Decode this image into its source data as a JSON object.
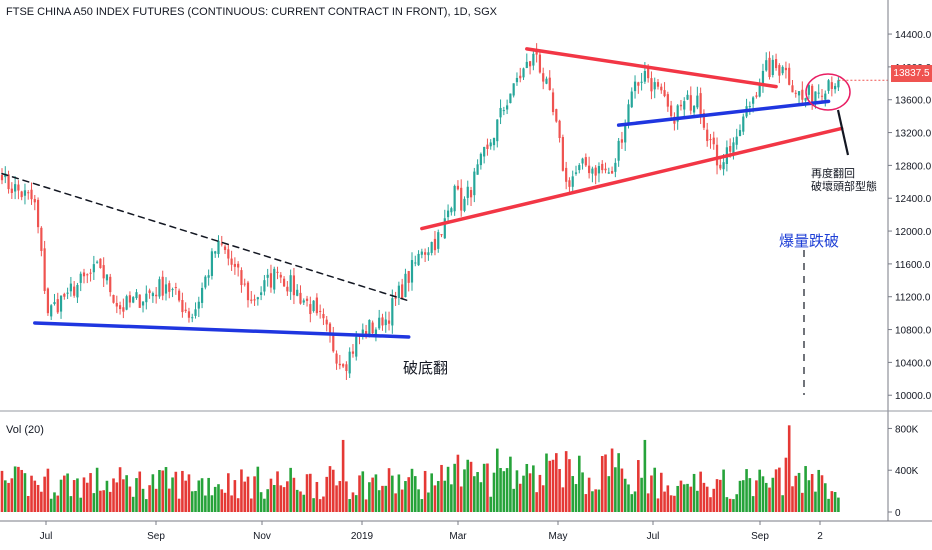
{
  "title": "FTSE CHINA A50 INDEX FUTURES (CONTINUOUS: CURRENT CONTRACT IN FRONT), 1D, SGX",
  "volume_label": "Vol (20)",
  "last_price": "13837.5",
  "annotations": {
    "bottom_reversal": "破底翻",
    "volume_breakdown": "爆量跌破",
    "head_note_line1": "再度翻回",
    "head_note_line2": "破壞頭部型態"
  },
  "colors": {
    "up": "#26a69a",
    "down": "#ef5350",
    "vol_up": "#26a33a",
    "vol_down": "#e53935",
    "trendline_red": "#f23645",
    "trendline_blue": "#1f36e0",
    "circle": "#e91e63"
  },
  "chart_data": {
    "type": "candlestick",
    "price_axis": {
      "ticks": [
        14400.0,
        14000.0,
        13600.0,
        13200.0,
        12800.0,
        12400.0,
        12000.0,
        11600.0,
        11200.0,
        10800.0,
        10400.0,
        10000.0
      ],
      "ylim": [
        9820,
        14620
      ]
    },
    "volume_axis": {
      "ticks": [
        "800K",
        "400K",
        "0"
      ],
      "ylim": [
        0,
        900000
      ]
    },
    "x_axis": {
      "ticks": [
        "Jul",
        "Sep",
        "Nov",
        "2019",
        "Mar",
        "May",
        "Jul",
        "Sep",
        "2"
      ]
    },
    "anchors": [
      {
        "d": 0,
        "p": 12620
      },
      {
        "d": 10,
        "p": 12350
      },
      {
        "d": 14,
        "p": 11000
      },
      {
        "d": 20,
        "p": 11250
      },
      {
        "d": 30,
        "p": 11550
      },
      {
        "d": 36,
        "p": 11050
      },
      {
        "d": 50,
        "p": 11350
      },
      {
        "d": 58,
        "p": 10950
      },
      {
        "d": 66,
        "p": 11880
      },
      {
        "d": 76,
        "p": 11150
      },
      {
        "d": 84,
        "p": 11500
      },
      {
        "d": 96,
        "p": 11000
      },
      {
        "d": 104,
        "p": 10350
      },
      {
        "d": 110,
        "p": 10800
      },
      {
        "d": 116,
        "p": 10850
      },
      {
        "d": 128,
        "p": 11750
      },
      {
        "d": 134,
        "p": 11950
      },
      {
        "d": 138,
        "p": 12550
      },
      {
        "d": 140,
        "p": 12250
      },
      {
        "d": 148,
        "p": 13000
      },
      {
        "d": 156,
        "p": 13800
      },
      {
        "d": 163,
        "p": 14150
      },
      {
        "d": 168,
        "p": 13450
      },
      {
        "d": 172,
        "p": 12600
      },
      {
        "d": 178,
        "p": 12800
      },
      {
        "d": 186,
        "p": 12700
      },
      {
        "d": 192,
        "p": 13700
      },
      {
        "d": 196,
        "p": 13950
      },
      {
        "d": 204,
        "p": 13400
      },
      {
        "d": 212,
        "p": 13650
      },
      {
        "d": 218,
        "p": 12800
      },
      {
        "d": 224,
        "p": 13150
      },
      {
        "d": 232,
        "p": 13950
      },
      {
        "d": 238,
        "p": 14000
      },
      {
        "d": 244,
        "p": 13600
      },
      {
        "d": 248,
        "p": 13700
      },
      {
        "d": 252,
        "p": 13837.5
      }
    ],
    "trendlines": [
      {
        "name": "downtrend-resistance",
        "style": "dashed",
        "color": "black",
        "from": {
          "d": 0,
          "p": 12700
        },
        "to": {
          "d": 124,
          "p": 11150
        }
      },
      {
        "name": "neckline-support",
        "style": "solid",
        "color": "blue",
        "from": {
          "d": 10,
          "p": 10880
        },
        "to": {
          "d": 124,
          "p": 10710
        }
      },
      {
        "name": "upper-wedge",
        "style": "solid",
        "color": "red",
        "from": {
          "d": 160,
          "p": 14220
        },
        "to": {
          "d": 236,
          "p": 13760
        }
      },
      {
        "name": "lower-wedge",
        "style": "solid",
        "color": "red",
        "from": {
          "d": 128,
          "p": 12030
        },
        "to": {
          "d": 256,
          "p": 13250
        }
      },
      {
        "name": "right-neckline",
        "style": "solid",
        "color": "blue",
        "from": {
          "d": 188,
          "p": 13290
        },
        "to": {
          "d": 252,
          "p": 13580
        }
      }
    ]
  }
}
